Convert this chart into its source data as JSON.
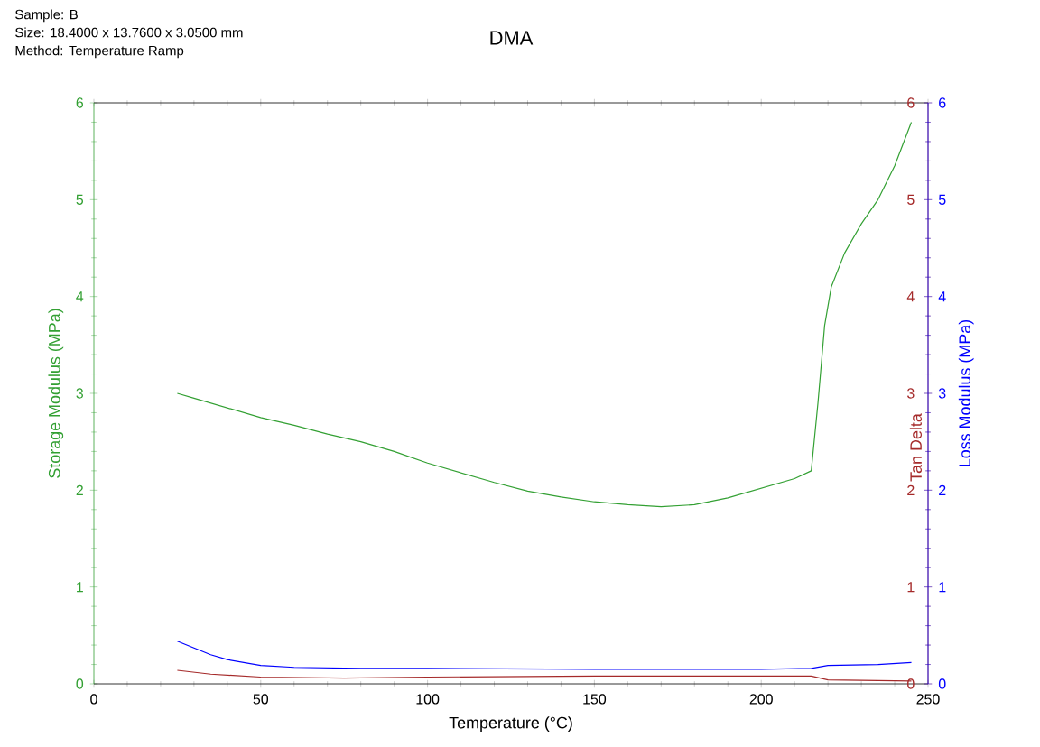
{
  "chart_data": {
    "type": "line",
    "title": "DMA",
    "annotations": [
      "Sample: B",
      "Size:  18.4000 x 13.7600 x 3.0500 mm",
      "Method: Temperature Ramp"
    ],
    "xlabel": "Temperature (°C)",
    "ylabel": "Storage Modulus (MPa)",
    "y2label": "Loss Modulus (MPa)",
    "y3label": "Tan Delta",
    "xlim": [
      0,
      250
    ],
    "xticks": [
      0,
      50,
      100,
      150,
      200,
      250
    ],
    "ylim": [
      0,
      6
    ],
    "yticks": [
      0,
      1,
      2,
      3,
      4,
      5,
      6
    ],
    "y2lim": [
      0,
      6
    ],
    "y2ticks": [
      0,
      1,
      2,
      3,
      4,
      5,
      6
    ],
    "y3lim": [
      0,
      6
    ],
    "y3ticks": [
      0,
      1,
      2,
      3,
      4,
      5,
      6
    ],
    "grid": false,
    "marker": "none",
    "line_style": "solid",
    "series": [
      {
        "color": "#33a033",
        "x": [
          25,
          30,
          40,
          50,
          60,
          70,
          80,
          90,
          100,
          110,
          120,
          130,
          140,
          150,
          160,
          170,
          180,
          190,
          200,
          210,
          215,
          217,
          219,
          221,
          225,
          230,
          235,
          240,
          245
        ],
        "values": [
          3.0,
          2.95,
          2.85,
          2.75,
          2.67,
          2.58,
          2.5,
          2.4,
          2.28,
          2.18,
          2.08,
          1.99,
          1.93,
          1.88,
          1.85,
          1.83,
          1.85,
          1.92,
          2.02,
          2.12,
          2.2,
          2.9,
          3.7,
          4.1,
          4.45,
          4.75,
          5.0,
          5.35,
          5.8
        ]
      },
      {
        "color": "#a52a2a",
        "axis": "y3",
        "x": [
          25,
          35,
          50,
          75,
          100,
          150,
          200,
          215,
          220,
          245
        ],
        "values": [
          0.14,
          0.1,
          0.07,
          0.06,
          0.07,
          0.08,
          0.08,
          0.08,
          0.04,
          0.03
        ]
      },
      {
        "color": "#0000ff",
        "axis": "y2",
        "x": [
          25,
          30,
          35,
          40,
          50,
          60,
          80,
          100,
          150,
          200,
          215,
          220,
          235,
          245
        ],
        "values": [
          0.44,
          0.37,
          0.3,
          0.25,
          0.19,
          0.17,
          0.16,
          0.16,
          0.15,
          0.15,
          0.16,
          0.19,
          0.2,
          0.22
        ]
      }
    ]
  }
}
